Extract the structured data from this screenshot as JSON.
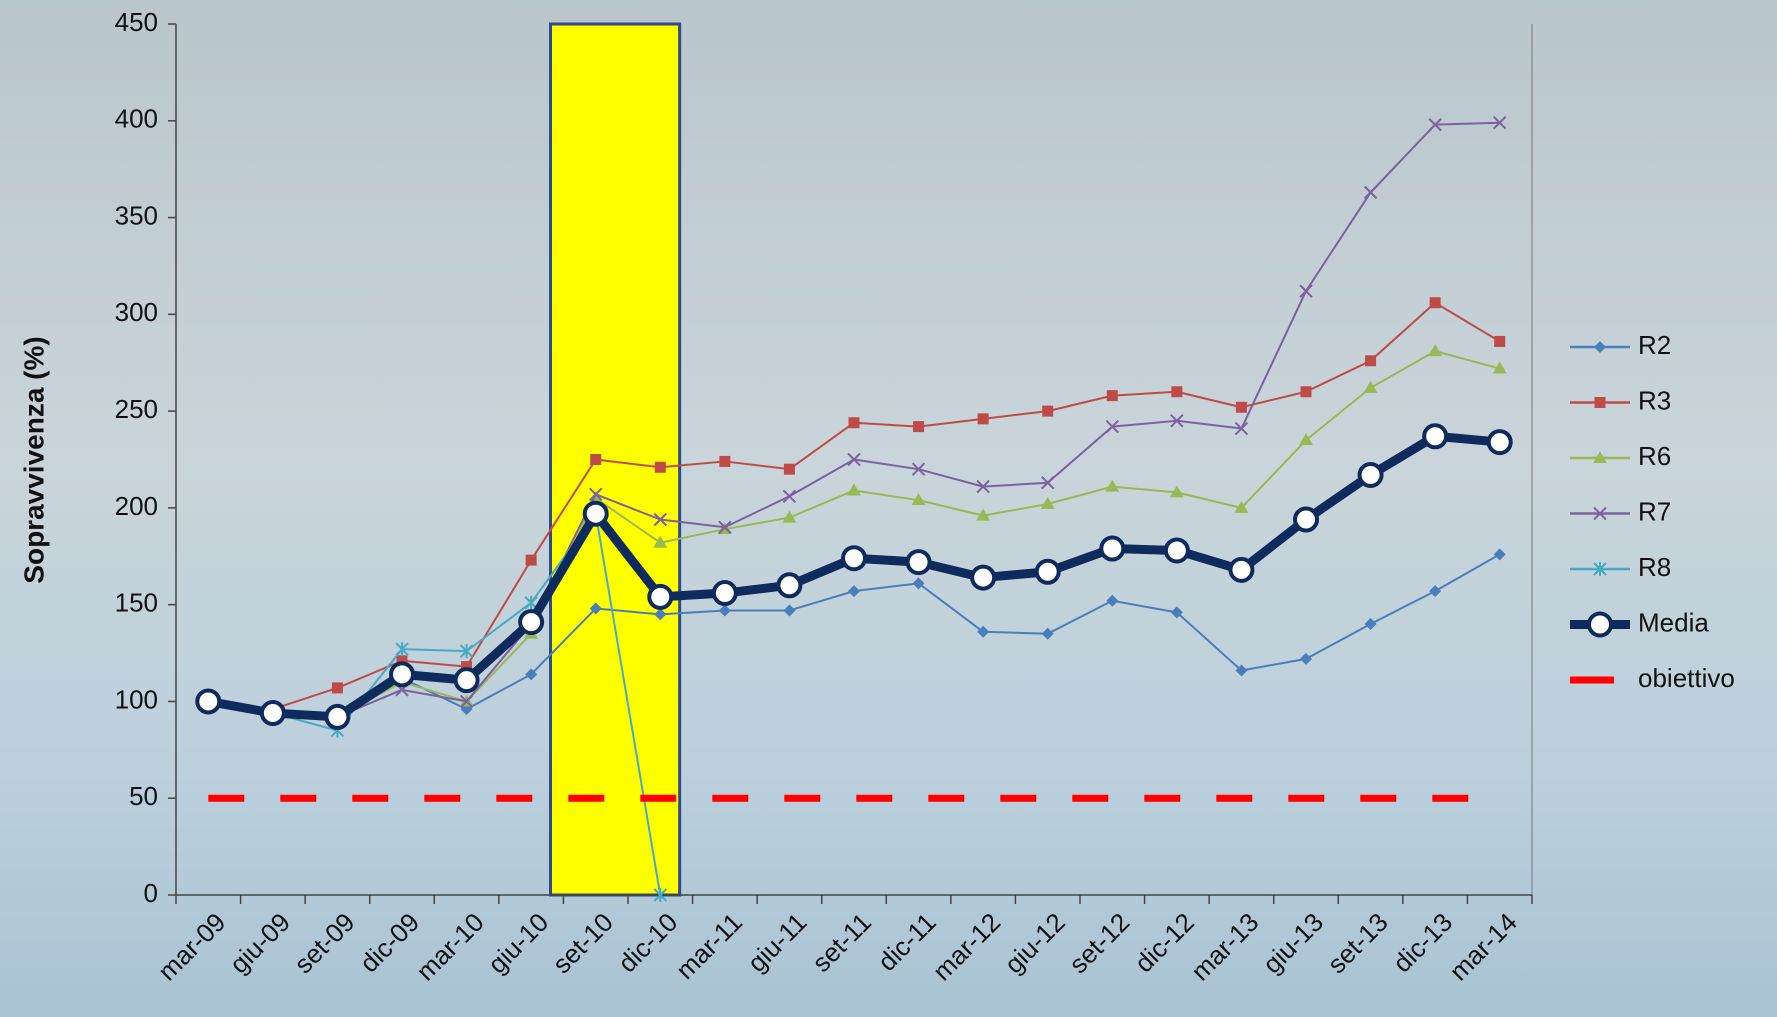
{
  "chart_data": {
    "type": "line",
    "ylabel": "Sopravvivenza (%)",
    "categories": [
      "mar-09",
      "giu-09",
      "set-09",
      "dic-09",
      "mar-10",
      "giu-10",
      "set-10",
      "dic-10",
      "mar-11",
      "giu-11",
      "set-11",
      "dic-11",
      "mar-12",
      "giu-12",
      "set-12",
      "dic-12",
      "mar-13",
      "giu-13",
      "set-13",
      "dic-13",
      "mar-14"
    ],
    "series": [
      {
        "name": "R2",
        "color": "#4a7ebb",
        "marker": "diamond",
        "values": [
          100,
          94,
          92,
          112,
          96,
          114,
          148,
          145,
          147,
          147,
          157,
          161,
          136,
          135,
          152,
          146,
          116,
          122,
          140,
          157,
          176
        ]
      },
      {
        "name": "R3",
        "color": "#be4b48",
        "marker": "square",
        "values": [
          100,
          96,
          107,
          121,
          118,
          173,
          225,
          221,
          224,
          220,
          244,
          242,
          246,
          250,
          258,
          260,
          252,
          260,
          276,
          306,
          286
        ]
      },
      {
        "name": "R6",
        "color": "#98b954",
        "marker": "triangle",
        "values": [
          100,
          94,
          92,
          110,
          100,
          135,
          205,
          182,
          189,
          195,
          209,
          204,
          196,
          202,
          211,
          208,
          200,
          235,
          262,
          281,
          272
        ]
      },
      {
        "name": "R7",
        "color": "#7d60a0",
        "marker": "x",
        "values": [
          100,
          94,
          92,
          106,
          100,
          140,
          207,
          194,
          190,
          206,
          225,
          220,
          211,
          213,
          242,
          245,
          241,
          312,
          363,
          398,
          399
        ]
      },
      {
        "name": "R8",
        "color": "#46aac5",
        "marker": "star",
        "values": [
          100,
          94,
          85,
          127,
          126,
          151,
          197,
          0,
          null,
          null,
          null,
          null,
          null,
          null,
          null,
          null,
          null,
          null,
          null,
          null,
          null
        ]
      },
      {
        "name": "Media",
        "color": "#0f2a5c",
        "marker": "circle",
        "values": [
          100,
          94,
          92,
          114,
          111,
          141,
          197,
          154,
          156,
          160,
          174,
          172,
          164,
          167,
          179,
          178,
          168,
          194,
          217,
          237,
          234
        ]
      },
      {
        "name": "obiettivo",
        "color": "#ff0000",
        "marker": "none",
        "dashed": true,
        "values": [
          50,
          50,
          50,
          50,
          50,
          50,
          50,
          50,
          50,
          50,
          50,
          50,
          50,
          50,
          50,
          50,
          50,
          50,
          50,
          50,
          50
        ]
      }
    ],
    "ylim": [
      0,
      450
    ],
    "yticks": [
      0,
      50,
      100,
      150,
      200,
      250,
      300,
      350,
      400,
      450
    ],
    "grid": false,
    "legend": "right"
  }
}
